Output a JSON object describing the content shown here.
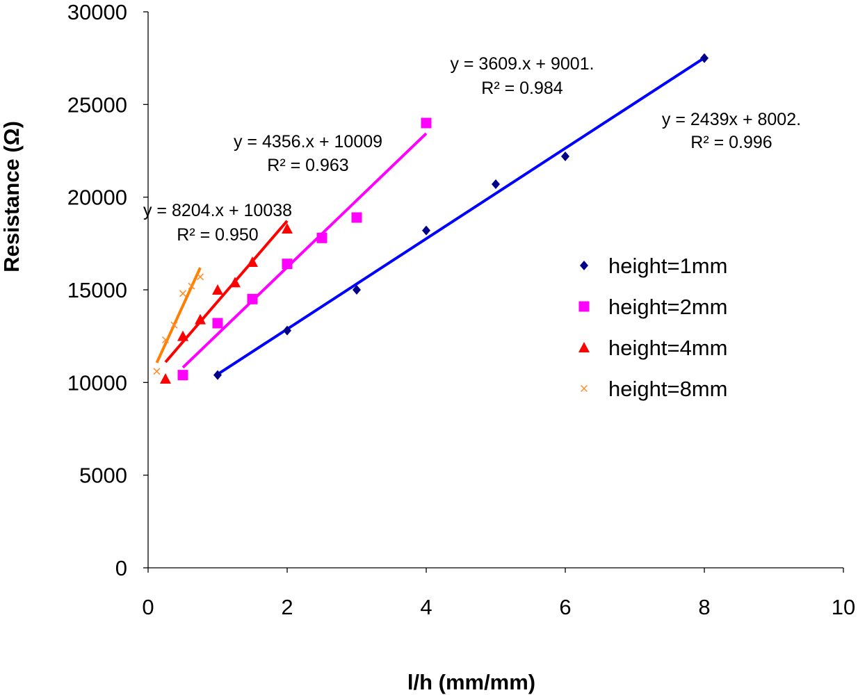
{
  "chart_data": {
    "type": "scatter",
    "title": "",
    "xlabel": "l/h (mm/mm)",
    "ylabel": "Resistance (Ω)",
    "xlim": [
      0,
      10
    ],
    "ylim": [
      0,
      30000
    ],
    "x_ticks": [
      "0",
      "2",
      "4",
      "6",
      "8",
      "10"
    ],
    "y_ticks": [
      "0",
      "5000",
      "10000",
      "15000",
      "20000",
      "25000",
      "30000"
    ],
    "grid": false,
    "legend_position": "right",
    "series": [
      {
        "name": "height=1mm",
        "color": "#00008B",
        "line_color": "#0000FF",
        "marker": "diamond",
        "x": [
          1,
          2,
          3,
          4,
          5,
          6,
          8
        ],
        "y": [
          10400,
          12800,
          15000,
          18200,
          20700,
          22200,
          27500
        ],
        "fit": {
          "x_range": [
            1,
            8
          ],
          "slope": 2439,
          "intercept": 8002
        }
      },
      {
        "name": "height=2mm",
        "color": "#FF00FF",
        "line_color": "#FF00FF",
        "marker": "square",
        "x": [
          0.5,
          1,
          1.5,
          2,
          2.5,
          3,
          4
        ],
        "y": [
          10400,
          13200,
          14500,
          16400,
          17800,
          18900,
          24000
        ],
        "fit": {
          "x_range": [
            0.5,
            4
          ],
          "slope": 3609,
          "intercept": 9001
        }
      },
      {
        "name": "height=4mm",
        "color": "#FF0000",
        "line_color": "#FF0000",
        "marker": "triangle",
        "x": [
          0.25,
          0.5,
          0.75,
          1,
          1.25,
          1.5,
          2
        ],
        "y": [
          10200,
          12500,
          13400,
          15000,
          15400,
          16500,
          18300
        ],
        "fit": {
          "x_range": [
            0.25,
            2
          ],
          "slope": 4356,
          "intercept": 10009
        }
      },
      {
        "name": "height=8mm",
        "color": "#FF8C2A",
        "line_color": "#FF7F00",
        "marker": "x",
        "x": [
          0.125,
          0.25,
          0.375,
          0.5,
          0.625,
          0.75
        ],
        "y": [
          10600,
          12300,
          13100,
          14800,
          15200,
          15700
        ],
        "fit": {
          "x_range": [
            0.125,
            0.75
          ],
          "slope": 8204,
          "intercept": 10038
        }
      }
    ],
    "annotations": [
      {
        "series": "height=1mm",
        "line1": "y = 2439x + 8002.",
        "line2": "R² = 0.996"
      },
      {
        "series": "height=2mm",
        "line1": "y = 3609.x + 9001.",
        "line2": "R² = 0.984"
      },
      {
        "series": "height=4mm",
        "line1": "y = 4356.x + 10009",
        "line2": "R² = 0.963"
      },
      {
        "series": "height=8mm",
        "line1": "y = 8204.x + 10038",
        "line2": "R² = 0.950"
      }
    ]
  }
}
